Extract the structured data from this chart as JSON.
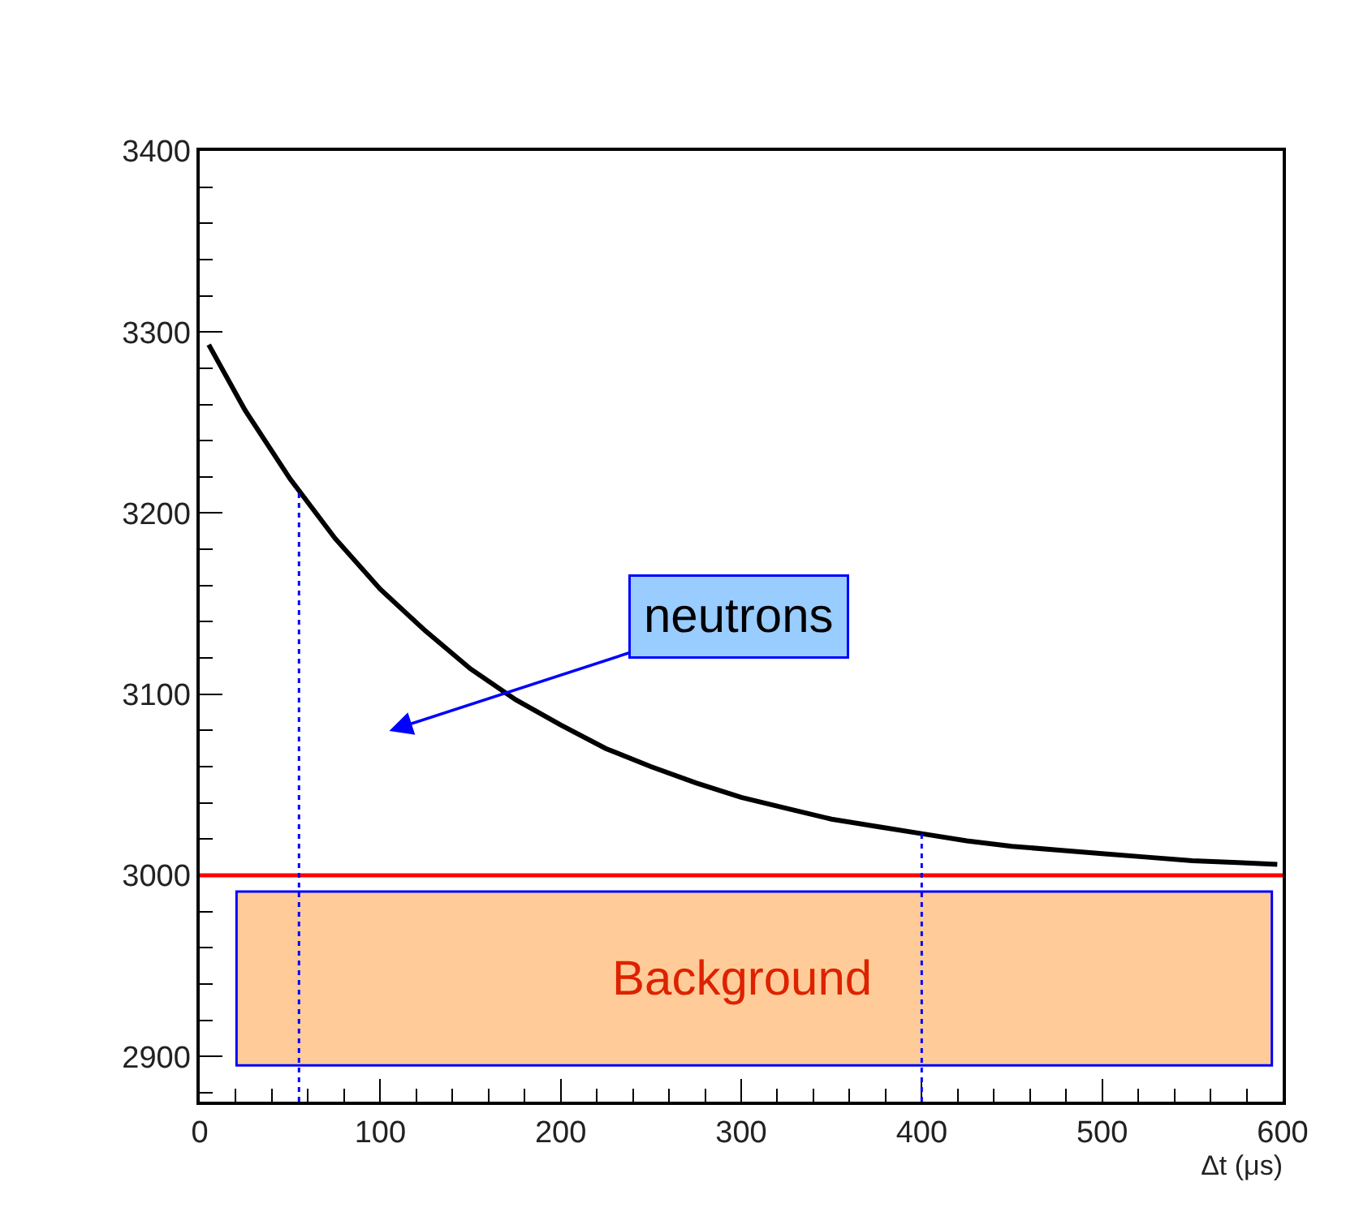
{
  "chart_data": {
    "type": "line",
    "xlabel": "Δt (μs)",
    "x": [
      5,
      25,
      50,
      75,
      100,
      125,
      150,
      175,
      200,
      225,
      250,
      275,
      300,
      325,
      350,
      375,
      400,
      425,
      450,
      475,
      500,
      525,
      550,
      575,
      597
    ],
    "series": [
      {
        "color": "#000000",
        "values": [
          3293,
          3257,
          3219,
          3186,
          3158,
          3135,
          3114,
          3097,
          3083,
          3070,
          3060,
          3051,
          3043,
          3037,
          3031,
          3027,
          3023,
          3019,
          3016,
          3014,
          3012,
          3010,
          3008,
          3007,
          3006
        ]
      }
    ],
    "xlim": [
      0,
      600
    ],
    "xticks": [
      0,
      100,
      200,
      300,
      400,
      500,
      600
    ],
    "ylim": [
      2875,
      3400
    ],
    "yticks": [
      2900,
      3000,
      3100,
      3200,
      3300,
      3400
    ],
    "grid": false,
    "marker": "none",
    "line_style": "solid",
    "ref_lines": [
      {
        "axis": "y",
        "value": 3000,
        "color": "#ff0000",
        "line_style": "solid"
      },
      {
        "axis": "x",
        "value": 55,
        "color": "#0000ff",
        "line_style": "dotted"
      },
      {
        "axis": "x",
        "value": 400,
        "color": "#0000ff",
        "line_style": "dotted"
      }
    ],
    "bands": [
      {
        "axis": "y",
        "from": 2895,
        "to": 2991,
        "label": "Background",
        "color": "#ffcc99"
      }
    ],
    "annotations": [
      "neutrons"
    ]
  }
}
